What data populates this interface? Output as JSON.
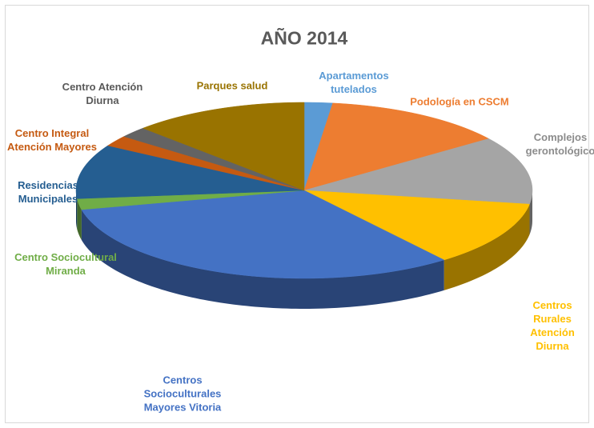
{
  "chart_data": {
    "type": "pie3d",
    "title": "AÑO 2014",
    "categories": [
      "Apartamentos\ntutelados",
      "Podología en CSCM",
      "Complejos\ngerontológico",
      "Centros Rurales\nAtención Diurna",
      "Centros\nSocioculturales\nMayores Vitoria",
      "Centro Sociocultural\nMiranda",
      "Residencias\nMunicipales",
      "Centro Integral\nAtención Mayores",
      "Centro Atención\nDiurna",
      "Parques salud"
    ],
    "values": [
      2,
      13,
      12.5,
      12,
      32,
      2,
      10,
      2,
      2,
      12.5
    ],
    "colors": [
      "#5b9bd5",
      "#ed7d31",
      "#a5a5a5",
      "#ffc000",
      "#4472c4",
      "#70ad47",
      "#255e91",
      "#c55a11",
      "#636363",
      "#997300"
    ]
  }
}
